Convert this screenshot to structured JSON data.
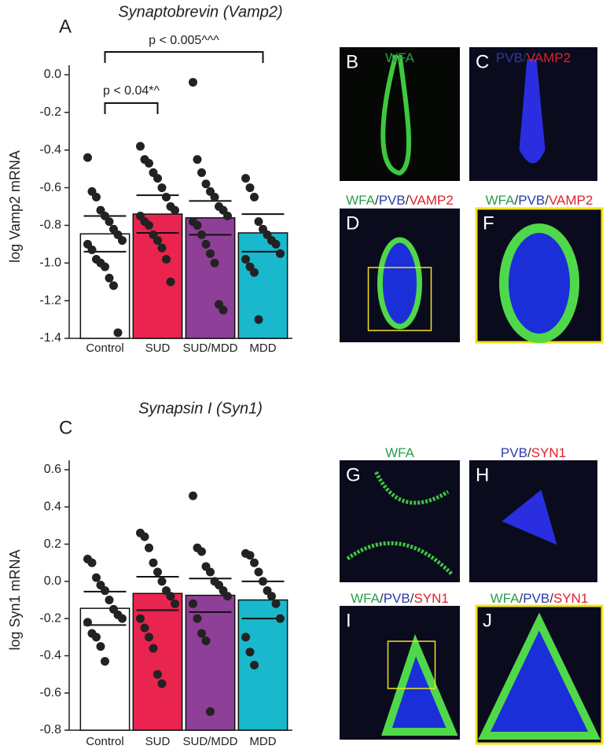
{
  "chart_data": [
    {
      "type": "bar",
      "panel": "A",
      "title": "Synaptobrevin (Vamp2)",
      "y_label": "log Vamp2 mRNA",
      "categories": [
        "Control",
        "SUD",
        "SUD/MDD",
        "MDD"
      ],
      "colors": [
        "#ffffff",
        "#e8244f",
        "#8e3f98",
        "#1ab8cc"
      ],
      "values": [
        -0.845,
        -0.74,
        -0.76,
        -0.84
      ],
      "errors": [
        0.095,
        0.1,
        0.09,
        0.1
      ],
      "points": [
        [
          -0.44,
          -0.62,
          -0.65,
          -0.72,
          -0.75,
          -0.78,
          -0.82,
          -0.85,
          -0.88,
          -0.9,
          -0.93,
          -0.98,
          -1.0,
          -1.02,
          -1.08,
          -1.12,
          -1.37
        ],
        [
          -0.38,
          -0.45,
          -0.47,
          -0.52,
          -0.55,
          -0.6,
          -0.65,
          -0.7,
          -0.72,
          -0.75,
          -0.78,
          -0.8,
          -0.85,
          -0.88,
          -0.92,
          -0.98,
          -1.1
        ],
        [
          -0.04,
          -0.45,
          -0.52,
          -0.58,
          -0.62,
          -0.65,
          -0.7,
          -0.72,
          -0.75,
          -0.78,
          -0.8,
          -0.85,
          -0.9,
          -0.95,
          -1.0,
          -1.22,
          -1.25
        ],
        [
          -0.55,
          -0.6,
          -0.65,
          -0.78,
          -0.82,
          -0.85,
          -0.88,
          -0.9,
          -0.95,
          -0.98,
          -1.02,
          -1.05,
          -1.3
        ]
      ],
      "ylim": [
        -1.4,
        0.0
      ],
      "yticks": [
        {
          "value": -1.4,
          "label": "-1.4"
        },
        {
          "value": -1.2,
          "label": "-1.2"
        },
        {
          "value": -1.0,
          "label": "-1.0"
        },
        {
          "value": -0.8,
          "label": "-0.8"
        },
        {
          "value": -0.6,
          "label": "-0.6"
        },
        {
          "value": -0.4,
          "label": "-0.4"
        },
        {
          "value": -0.2,
          "label": "-0.2"
        },
        {
          "value": 0.0,
          "label": "0.0"
        }
      ],
      "annotations": [
        {
          "text": "p < 0.04*^",
          "between": [
            "Control",
            "SUD"
          ]
        },
        {
          "text": "p < 0.005^^^",
          "between": [
            "Control",
            "MDD"
          ]
        }
      ]
    },
    {
      "type": "bar",
      "panel": "C",
      "title": "Synapsin I (Syn1)",
      "y_label": "log Syn1 mRNA",
      "categories": [
        "Control",
        "SUD",
        "SUD/MDD",
        "MDD"
      ],
      "colors": [
        "#ffffff",
        "#e8244f",
        "#8e3f98",
        "#1ab8cc"
      ],
      "values": [
        -0.145,
        -0.065,
        -0.075,
        -0.1
      ],
      "errors": [
        0.09,
        0.09,
        0.09,
        0.1
      ],
      "points": [
        [
          0.12,
          0.1,
          0.02,
          -0.02,
          -0.05,
          -0.1,
          -0.15,
          -0.18,
          -0.2,
          -0.22,
          -0.28,
          -0.3,
          -0.35,
          -0.43
        ],
        [
          0.26,
          0.24,
          0.18,
          0.1,
          0.05,
          0.0,
          -0.05,
          -0.08,
          -0.12,
          -0.2,
          -0.25,
          -0.3,
          -0.36,
          -0.5,
          -0.55
        ],
        [
          0.46,
          0.18,
          0.16,
          0.08,
          0.05,
          0.0,
          -0.02,
          -0.05,
          -0.08,
          -0.12,
          -0.2,
          -0.28,
          -0.32,
          -0.7
        ],
        [
          0.15,
          0.14,
          0.1,
          0.05,
          0.0,
          -0.05,
          -0.08,
          -0.12,
          -0.2,
          -0.3,
          -0.38,
          -0.45
        ]
      ],
      "ylim": [
        -0.8,
        0.6
      ],
      "yticks": [
        {
          "value": -0.8,
          "label": "-0.8"
        },
        {
          "value": -0.6,
          "label": "-0.6"
        },
        {
          "value": -0.4,
          "label": "-0.4"
        },
        {
          "value": -0.2,
          "label": "-0.2"
        },
        {
          "value": 0.0,
          "label": "0.0"
        },
        {
          "value": 0.2,
          "label": "0.2"
        },
        {
          "value": 0.4,
          "label": "0.4"
        },
        {
          "value": 0.6,
          "label": "0.6"
        }
      ],
      "annotations": []
    }
  ],
  "images": [
    {
      "letter": "B",
      "caption": [
        {
          "text": "WFA",
          "color": "#2a9d4a"
        }
      ]
    },
    {
      "letter": "C",
      "caption": [
        {
          "text": "PVB",
          "color": "#2b3aa8"
        },
        {
          "text": "/",
          "color": "#333333"
        },
        {
          "text": "VAMP2",
          "color": "#e0202a"
        }
      ]
    },
    {
      "letter": "D",
      "caption": [
        {
          "text": "WFA",
          "color": "#2a9d4a"
        },
        {
          "text": "/",
          "color": "#333333"
        },
        {
          "text": "PVB",
          "color": "#2b3aa8"
        },
        {
          "text": "/",
          "color": "#333333"
        },
        {
          "text": "VAMP2",
          "color": "#e0202a"
        }
      ]
    },
    {
      "letter": "F",
      "caption": [
        {
          "text": "WFA",
          "color": "#2a9d4a"
        },
        {
          "text": "/",
          "color": "#333333"
        },
        {
          "text": "PVB",
          "color": "#2b3aa8"
        },
        {
          "text": "/",
          "color": "#333333"
        },
        {
          "text": "VAMP2",
          "color": "#e0202a"
        }
      ]
    },
    {
      "letter": "G",
      "caption": [
        {
          "text": "WFA",
          "color": "#2a9d4a"
        }
      ]
    },
    {
      "letter": "H",
      "caption": [
        {
          "text": "PVB",
          "color": "#2b3aa8"
        },
        {
          "text": "/",
          "color": "#333333"
        },
        {
          "text": "SYN1",
          "color": "#e0202a"
        }
      ]
    },
    {
      "letter": "I",
      "caption": [
        {
          "text": "WFA",
          "color": "#2a9d4a"
        },
        {
          "text": "/",
          "color": "#333333"
        },
        {
          "text": "PVB",
          "color": "#2b3aa8"
        },
        {
          "text": "/",
          "color": "#333333"
        },
        {
          "text": "SYN1",
          "color": "#e0202a"
        }
      ]
    },
    {
      "letter": "J",
      "caption": [
        {
          "text": "WFA",
          "color": "#2a9d4a"
        },
        {
          "text": "/",
          "color": "#333333"
        },
        {
          "text": "PVB",
          "color": "#2b3aa8"
        },
        {
          "text": "/",
          "color": "#333333"
        },
        {
          "text": "SYN1",
          "color": "#e0202a"
        }
      ]
    }
  ]
}
